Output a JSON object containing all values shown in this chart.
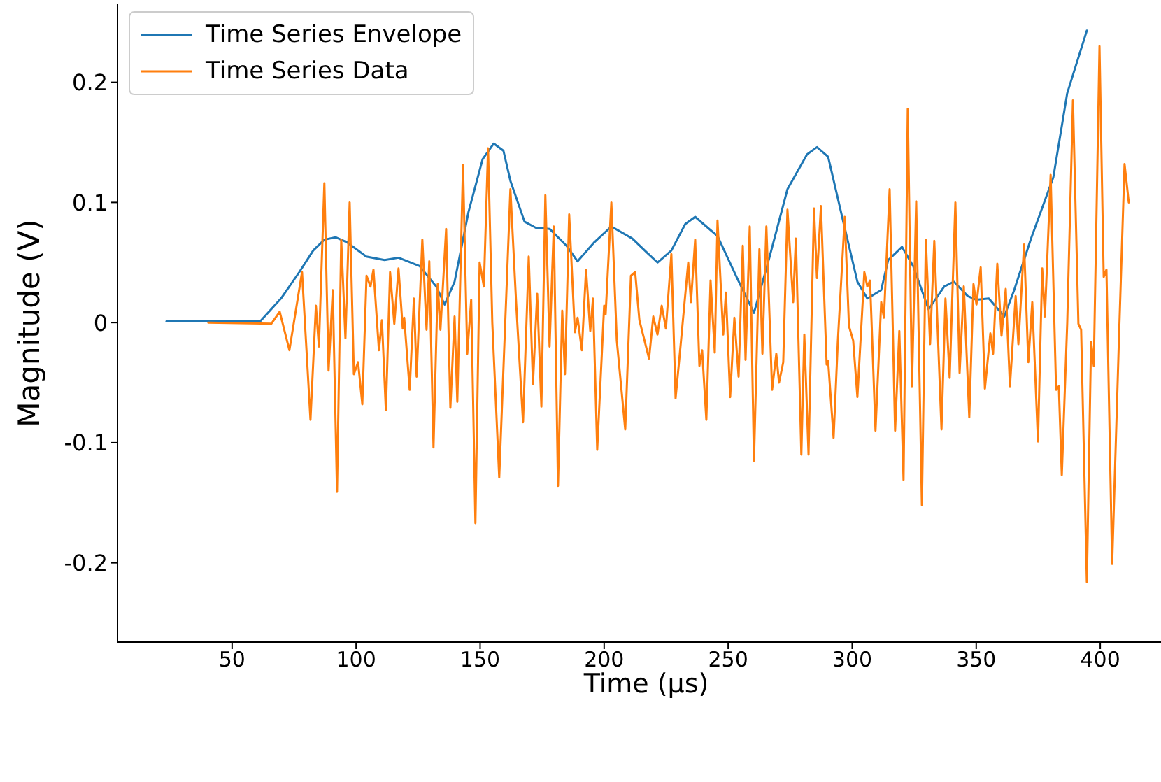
{
  "chart_data": {
    "type": "line",
    "xlabel": "Time (μs)",
    "ylabel": "Magnitude (V)",
    "xlim": [
      3.8,
      424.5
    ],
    "ylim": [
      -0.266,
      0.265
    ],
    "xticks": [
      50,
      100,
      150,
      200,
      250,
      300,
      350,
      400
    ],
    "yticks": [
      -0.2,
      -0.1,
      0.0,
      0.1,
      0.2
    ],
    "grid": false,
    "legend": "top left",
    "marker": "none",
    "line_style": "solid",
    "series": [
      {
        "name": "Time Series Envelope",
        "color": "#1f77b4",
        "x": [
          23.5,
          61.3,
          69.7,
          77.1,
          82.7,
          87.2,
          91.7,
          96.2,
          104.1,
          111.5,
          117.1,
          125.6,
          132.3,
          135.7,
          139.7,
          145.3,
          151.0,
          155.5,
          159.4,
          162.2,
          167.9,
          172.4,
          178.0,
          184.8,
          189.3,
          196.1,
          202.9,
          211.3,
          216.9,
          221.5,
          227.1,
          232.7,
          236.7,
          245.7,
          253.6,
          260.4,
          266.6,
          273.9,
          281.8,
          285.8,
          290.3,
          296.4,
          302.1,
          306.1,
          311.7,
          314.5,
          320.1,
          324.6,
          330.8,
          337.1,
          341.0,
          346.6,
          350.1,
          355.1,
          361.3,
          365.3,
          372.1,
          381.1,
          386.7,
          394.6
        ],
        "values": [
          0.001,
          0.001,
          0.02,
          0.042,
          0.06,
          0.069,
          0.071,
          0.067,
          0.055,
          0.052,
          0.054,
          0.047,
          0.03,
          0.015,
          0.034,
          0.092,
          0.136,
          0.149,
          0.143,
          0.118,
          0.084,
          0.079,
          0.078,
          0.064,
          0.051,
          0.067,
          0.08,
          0.07,
          0.059,
          0.05,
          0.06,
          0.082,
          0.088,
          0.072,
          0.037,
          0.008,
          0.054,
          0.111,
          0.14,
          0.146,
          0.138,
          0.084,
          0.034,
          0.02,
          0.027,
          0.052,
          0.063,
          0.047,
          0.011,
          0.03,
          0.034,
          0.022,
          0.019,
          0.02,
          0.005,
          0.027,
          0.07,
          0.121,
          0.191,
          0.243
        ]
      },
      {
        "name": "Time Series Data",
        "color": "#ff7f0e",
        "x": [
          40.4,
          65.8,
          69.2,
          73.1,
          78.2,
          81.6,
          83.8,
          85.0,
          87.2,
          88.9,
          90.6,
          92.3,
          94.0,
          95.7,
          97.4,
          99.1,
          100.8,
          102.5,
          104.2,
          105.8,
          107.0,
          109.2,
          110.4,
          112.0,
          113.7,
          115.4,
          117.1,
          118.8,
          119.4,
          121.6,
          123.3,
          124.4,
          126.7,
          128.4,
          129.5,
          131.2,
          132.9,
          134.0,
          136.3,
          138.0,
          139.7,
          140.8,
          143.1,
          144.8,
          146.4,
          148.1,
          149.8,
          151.5,
          153.2,
          154.9,
          157.7,
          162.2,
          164.5,
          167.3,
          169.6,
          171.3,
          173.0,
          174.7,
          176.3,
          178.0,
          179.7,
          181.4,
          183.1,
          184.2,
          185.9,
          188.2,
          189.3,
          191.0,
          192.7,
          194.4,
          195.5,
          197.2,
          200.0,
          200.6,
          202.9,
          205.1,
          208.5,
          210.8,
          212.5,
          214.2,
          218.1,
          219.8,
          221.5,
          223.2,
          224.9,
          227.1,
          228.8,
          230.5,
          233.9,
          235.0,
          236.7,
          238.4,
          239.5,
          241.2,
          242.9,
          244.6,
          245.7,
          248.0,
          249.1,
          250.8,
          252.5,
          254.2,
          255.9,
          257.0,
          258.7,
          260.4,
          262.6,
          263.8,
          265.4,
          267.7,
          269.4,
          270.5,
          272.2,
          273.9,
          276.2,
          277.3,
          279.5,
          280.7,
          282.4,
          284.6,
          285.8,
          287.4,
          289.7,
          290.3,
          292.5,
          294.2,
          297.0,
          298.7,
          300.4,
          302.1,
          304.9,
          306.1,
          307.2,
          309.4,
          311.7,
          312.8,
          315.1,
          317.3,
          319.0,
          320.7,
          322.4,
          324.1,
          325.8,
          328.1,
          329.7,
          331.4,
          333.1,
          336.0,
          337.6,
          339.3,
          341.6,
          343.3,
          345.0,
          347.2,
          348.9,
          350.1,
          351.8,
          353.5,
          355.7,
          356.8,
          358.5,
          360.2,
          361.9,
          363.6,
          365.9,
          367.0,
          369.3,
          371.0,
          372.6,
          374.9,
          376.6,
          377.7,
          380.0,
          382.2,
          383.3,
          384.5,
          386.7,
          389.0,
          391.2,
          392.3,
          394.6,
          396.3,
          397.4,
          399.7,
          401.4,
          402.5,
          404.8,
          407.6,
          409.8,
          411.5
        ],
        "values": [
          0,
          -0.001,
          0.009,
          -0.023,
          0.042,
          -0.081,
          0.014,
          -0.02,
          0.116,
          -0.04,
          0.027,
          -0.141,
          0.069,
          -0.013,
          0.1,
          -0.043,
          -0.033,
          -0.068,
          0.039,
          0.03,
          0.044,
          -0.023,
          0.002,
          -0.073,
          0.042,
          -0.001,
          0.045,
          -0.005,
          0.004,
          -0.056,
          0.02,
          -0.045,
          0.069,
          -0.006,
          0.051,
          -0.104,
          0.032,
          -0.006,
          0.078,
          -0.071,
          0.005,
          -0.066,
          0.131,
          -0.026,
          0.019,
          -0.167,
          0.05,
          0.03,
          0.145,
          0,
          -0.129,
          0.111,
          0.017,
          -0.083,
          0.055,
          -0.051,
          0.024,
          -0.07,
          0.106,
          -0.02,
          0.08,
          -0.136,
          0.01,
          -0.043,
          0.09,
          -0.008,
          0.004,
          -0.023,
          0.044,
          -0.007,
          0.02,
          -0.106,
          0.014,
          0.007,
          0.1,
          -0.015,
          -0.089,
          0.039,
          0.042,
          0.002,
          -0.03,
          0.005,
          -0.01,
          0.014,
          -0.005,
          0.057,
          -0.063,
          -0.026,
          0.05,
          0.017,
          0.069,
          -0.036,
          -0.023,
          -0.081,
          0.035,
          -0.025,
          0.085,
          -0.01,
          0.025,
          -0.062,
          0.004,
          -0.045,
          0.064,
          -0.031,
          0.08,
          -0.115,
          0.061,
          -0.026,
          0.08,
          -0.056,
          -0.026,
          -0.05,
          -0.033,
          0.094,
          0.017,
          0.07,
          -0.11,
          -0.01,
          -0.11,
          0.095,
          0.037,
          0.097,
          -0.035,
          -0.032,
          -0.096,
          -0.016,
          0.088,
          -0.003,
          -0.015,
          -0.062,
          0.042,
          0.03,
          0.035,
          -0.09,
          0.017,
          0.004,
          0.111,
          -0.09,
          -0.007,
          -0.131,
          0.178,
          -0.053,
          0.101,
          -0.152,
          0.069,
          -0.018,
          0.068,
          -0.089,
          0.02,
          -0.046,
          0.1,
          -0.042,
          0.03,
          -0.079,
          0.032,
          0.015,
          0.046,
          -0.055,
          -0.009,
          -0.026,
          0.049,
          -0.011,
          0.028,
          -0.053,
          0.022,
          -0.018,
          0.065,
          -0.033,
          0.017,
          -0.099,
          0.045,
          0.005,
          0.123,
          -0.056,
          -0.053,
          -0.127,
          0,
          0.185,
          -0.001,
          -0.006,
          -0.216,
          -0.016,
          -0.036,
          0.23,
          0.038,
          0.044,
          -0.201,
          -0.01,
          0.132,
          0.1
        ]
      }
    ]
  }
}
